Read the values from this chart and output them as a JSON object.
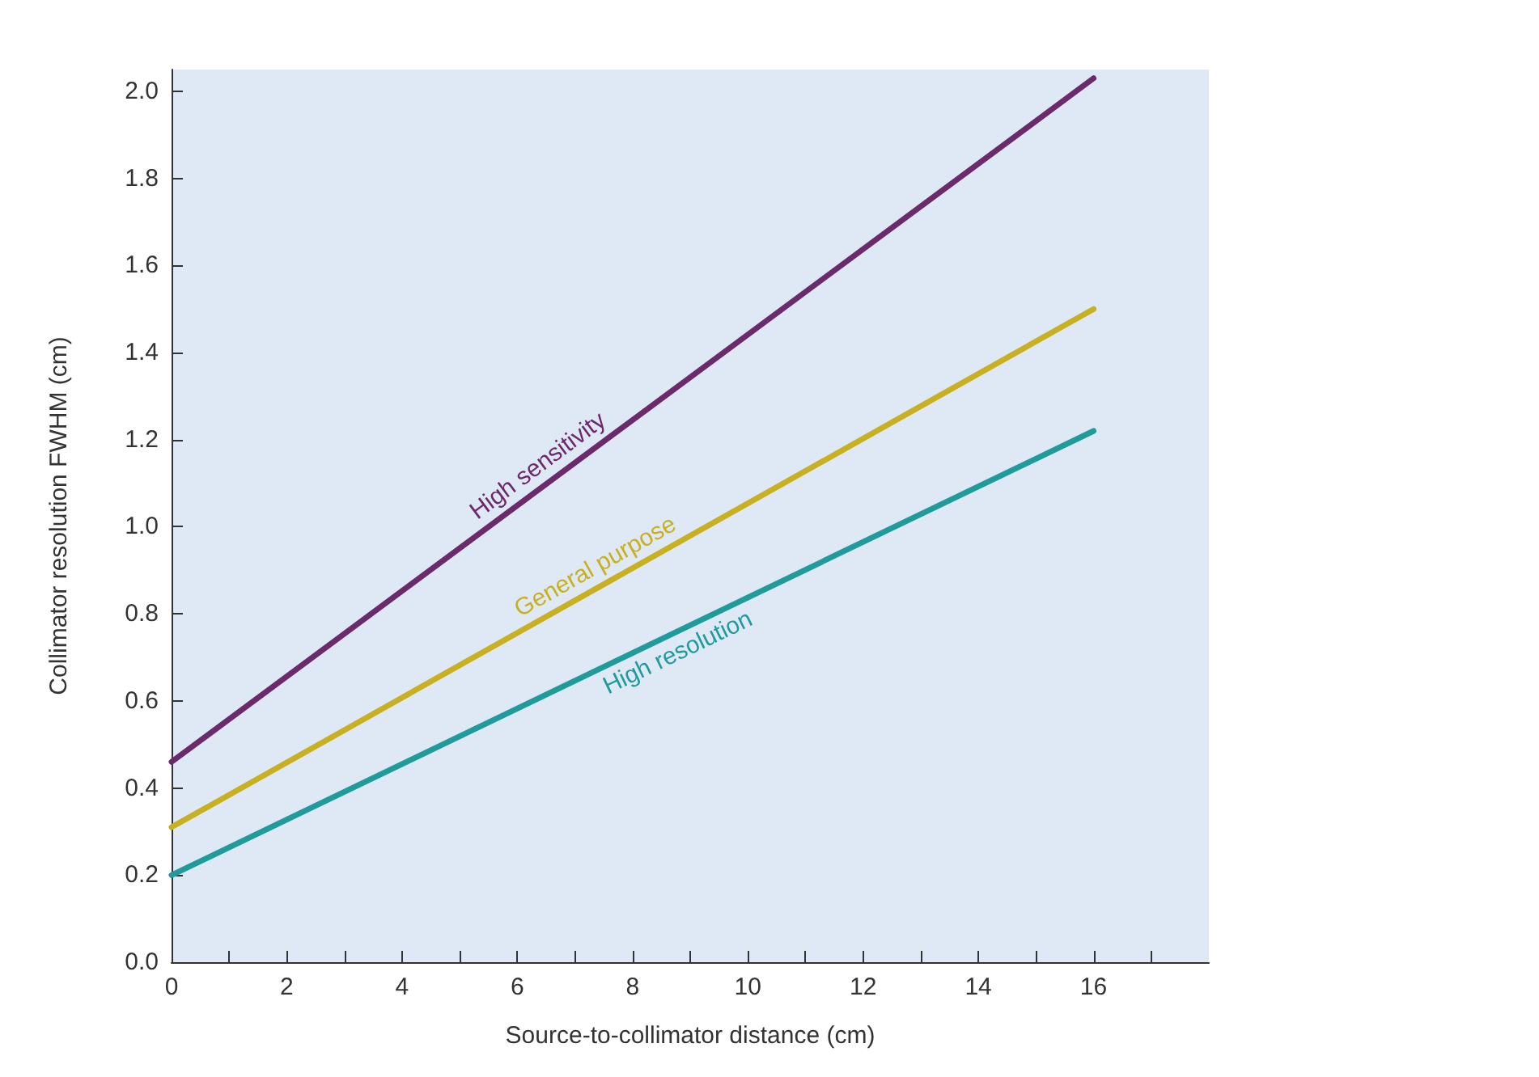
{
  "chart_data": {
    "type": "line",
    "xlabel": "Source-to-collimator distance (cm)",
    "ylabel": "Collimator resolution FWHM (cm)",
    "x": [
      0,
      16
    ],
    "series": [
      {
        "name": "High sensitivity",
        "color": "#6b2a6b",
        "values": [
          0.46,
          2.03
        ]
      },
      {
        "name": "General purpose",
        "color": "#c8b020",
        "values": [
          0.31,
          1.5
        ]
      },
      {
        "name": "High resolution",
        "color": "#1f9b9b",
        "values": [
          0.2,
          1.22
        ]
      }
    ],
    "xlim": [
      0,
      18
    ],
    "xticks": [
      0,
      {
        "value": 1,
        "label": null
      },
      2,
      {
        "value": 3,
        "label": null
      },
      4,
      {
        "value": 5,
        "label": null
      },
      6,
      {
        "value": 7,
        "label": null
      },
      8,
      {
        "value": 9,
        "label": null
      },
      10,
      {
        "value": 11,
        "label": null
      },
      12,
      {
        "value": 13,
        "label": null
      },
      14,
      {
        "value": 15,
        "label": null
      },
      16,
      {
        "value": 17,
        "label": null
      }
    ],
    "ylim": [
      0,
      2.05
    ],
    "yticks": [
      {
        "value": 0,
        "label": "0.0"
      },
      0.2,
      0.4,
      0.6,
      0.8,
      {
        "value": 1,
        "label": "1.0"
      },
      1.2,
      1.4,
      1.6,
      1.8,
      {
        "value": 2,
        "label": "2.0"
      }
    ],
    "marker": "none",
    "line_style": "solid",
    "grid": false,
    "legend": false
  }
}
